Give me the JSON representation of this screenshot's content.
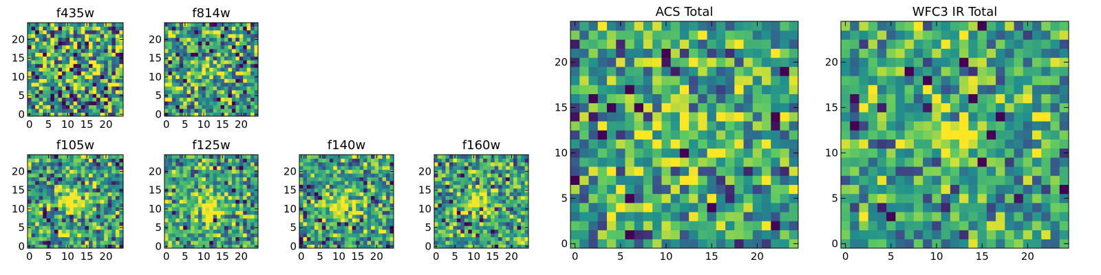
{
  "chart_data": {
    "type": "heatmap",
    "colormap": [
      "#440154",
      "#3b528b",
      "#21908d",
      "#5dc963",
      "#fde725"
    ],
    "panels": [
      {
        "id": "f435w",
        "title": "f435w",
        "grid": 25,
        "xlim": [
          0,
          24
        ],
        "ylim": [
          0,
          24
        ],
        "xticks": [
          0,
          5,
          10,
          15,
          20
        ],
        "yticks": [
          0,
          5,
          10,
          15,
          20
        ],
        "seed": 11,
        "noise": 0.62,
        "peak": {
          "x": 12,
          "y": 12,
          "sigma": 2.0,
          "amp": 0.02
        }
      },
      {
        "id": "f814w",
        "title": "f814w",
        "grid": 25,
        "xlim": [
          0,
          24
        ],
        "ylim": [
          0,
          24
        ],
        "xticks": [
          0,
          5,
          10,
          15,
          20
        ],
        "yticks": [
          0,
          5,
          10,
          15,
          20
        ],
        "seed": 23,
        "noise": 0.52,
        "peak": {
          "x": 12,
          "y": 12,
          "sigma": 2.2,
          "amp": 0.3
        }
      },
      {
        "id": "f105w",
        "title": "f105w",
        "grid": 25,
        "xlim": [
          0,
          24
        ],
        "ylim": [
          0,
          24
        ],
        "xticks": [
          0,
          5,
          10,
          15,
          20
        ],
        "yticks": [
          0,
          5,
          10,
          15,
          20
        ],
        "seed": 37,
        "noise": 0.48,
        "peak": {
          "x": 11,
          "y": 12,
          "sigma": 2.4,
          "amp": 0.45
        }
      },
      {
        "id": "f125w",
        "title": "f125w",
        "grid": 25,
        "xlim": [
          0,
          24
        ],
        "ylim": [
          0,
          24
        ],
        "xticks": [
          0,
          5,
          10,
          15,
          20
        ],
        "yticks": [
          0,
          5,
          10,
          15,
          20
        ],
        "seed": 41,
        "noise": 0.46,
        "peak": {
          "x": 12,
          "y": 11,
          "sigma": 3.2,
          "amp": 0.45
        }
      },
      {
        "id": "f140w",
        "title": "f140w",
        "grid": 25,
        "xlim": [
          0,
          24
        ],
        "ylim": [
          0,
          24
        ],
        "xticks": [
          0,
          5,
          10,
          15,
          20
        ],
        "yticks": [
          0,
          5,
          10,
          15,
          20
        ],
        "seed": 53,
        "noise": 0.45,
        "peak": {
          "x": 11,
          "y": 11,
          "sigma": 2.5,
          "amp": 0.45
        }
      },
      {
        "id": "f160w",
        "title": "f160w",
        "grid": 25,
        "xlim": [
          0,
          24
        ],
        "ylim": [
          0,
          24
        ],
        "xticks": [
          0,
          5,
          10,
          15,
          20
        ],
        "yticks": [
          0,
          5,
          10,
          15,
          20
        ],
        "seed": 67,
        "noise": 0.46,
        "peak": {
          "x": 12,
          "y": 12,
          "sigma": 2.2,
          "amp": 0.5
        }
      },
      {
        "id": "acs-total",
        "title": "ACS Total",
        "grid": 25,
        "xlim": [
          0,
          24
        ],
        "ylim": [
          0,
          24
        ],
        "xticks": [
          0,
          5,
          10,
          15,
          20
        ],
        "yticks": [
          0,
          5,
          10,
          15,
          20
        ],
        "seed": 79,
        "noise": 0.48,
        "peak": {
          "x": 12,
          "y": 13,
          "sigma": 2.3,
          "amp": 0.35
        }
      },
      {
        "id": "wfc3-ir-total",
        "title": "WFC3 IR Total",
        "grid": 25,
        "xlim": [
          0,
          24
        ],
        "ylim": [
          0,
          24
        ],
        "xticks": [
          0,
          5,
          10,
          15,
          20
        ],
        "yticks": [
          0,
          5,
          10,
          15,
          20
        ],
        "seed": 97,
        "noise": 0.42,
        "peak": {
          "x": 12,
          "y": 12,
          "sigma": 2.3,
          "amp": 0.55
        }
      }
    ]
  }
}
